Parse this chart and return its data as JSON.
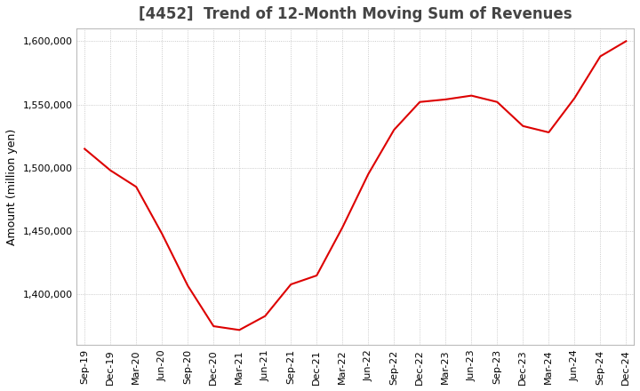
{
  "title": "[4452]  Trend of 12-Month Moving Sum of Revenues",
  "ylabel": "Amount (million yen)",
  "background_color": "#ffffff",
  "grid_color": "#bbbbbb",
  "line_color": "#dd0000",
  "x_labels": [
    "Sep-19",
    "Dec-19",
    "Mar-20",
    "Jun-20",
    "Sep-20",
    "Dec-20",
    "Mar-21",
    "Jun-21",
    "Sep-21",
    "Dec-21",
    "Mar-22",
    "Jun-22",
    "Sep-22",
    "Dec-22",
    "Mar-23",
    "Jun-23",
    "Sep-23",
    "Dec-23",
    "Mar-24",
    "Jun-24",
    "Sep-24",
    "Dec-24"
  ],
  "values": [
    1515000,
    1498000,
    1485000,
    1448000,
    1407000,
    1375000,
    1372000,
    1383000,
    1408000,
    1415000,
    1453000,
    1495000,
    1530000,
    1552000,
    1554000,
    1557000,
    1552000,
    1533000,
    1528000,
    1555000,
    1588000,
    1600000
  ],
  "ylim_min": 1360000,
  "ylim_max": 1610000,
  "yticks": [
    1400000,
    1450000,
    1500000,
    1550000,
    1600000
  ],
  "title_fontsize": 12,
  "tick_fontsize": 8,
  "ylabel_fontsize": 9,
  "title_color": "#444444"
}
